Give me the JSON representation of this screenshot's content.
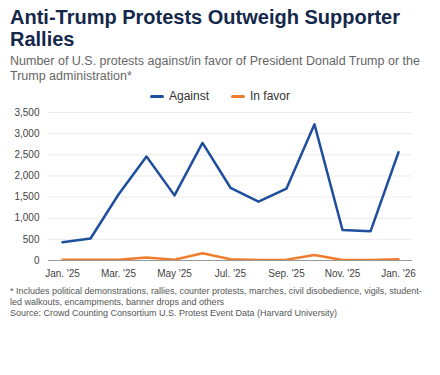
{
  "chart_data": {
    "type": "line",
    "title": "Anti-Trump Protests Outweigh Supporter Rallies",
    "subtitle": "Number of U.S. protests against/in favor of President Donald Trump or the Trump administration*",
    "categories": [
      "Jan. '25",
      null,
      "Mar. '25",
      null,
      "May '25",
      null,
      "Jul. '25",
      null,
      "Sep. '25",
      null,
      "Nov. '25",
      null,
      "Jan. '26"
    ],
    "series": [
      {
        "name": "Against",
        "color": "#1f4e9c",
        "values": [
          430,
          520,
          1560,
          2460,
          1540,
          2780,
          1720,
          1390,
          1700,
          3220,
          720,
          690,
          2560
        ]
      },
      {
        "name": "In favor",
        "color": "#f07d2d",
        "values": [
          20,
          15,
          20,
          70,
          20,
          170,
          30,
          10,
          20,
          130,
          10,
          10,
          30
        ]
      }
    ],
    "ylim": [
      0,
      3500
    ],
    "yticks": [
      0,
      500,
      {
        "value": 1000,
        "label": "1,000"
      },
      {
        "value": 1500,
        "label": "1,500"
      },
      {
        "value": 2000,
        "label": "2,000"
      },
      {
        "value": 2500,
        "label": "2,500"
      },
      {
        "value": 3000,
        "label": "3,000"
      },
      {
        "value": 3500,
        "label": "3,500"
      }
    ],
    "grid": true,
    "legend": "top",
    "footnote": "* Includes political demonstrations, rallies, counter protests, marches, civil disobedience, vigils, student-led walkouts, encampments, banner drops and others",
    "source": "Source: Crowd Counting Consortium U.S. Protest Event Data (Harvard University)"
  }
}
